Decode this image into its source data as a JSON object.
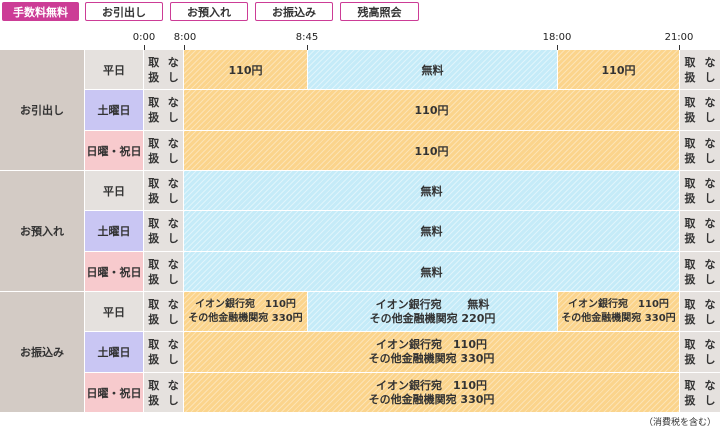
{
  "tabs": [
    {
      "label": "手数料無料",
      "active": true
    },
    {
      "label": "お引出し",
      "active": false
    },
    {
      "label": "お預入れ",
      "active": false
    },
    {
      "label": "お振込み",
      "active": false
    },
    {
      "label": "残高照会",
      "active": false
    }
  ],
  "timeline": {
    "ticks": [
      "0:00",
      "8:00",
      "8:45",
      "18:00",
      "21:00"
    ]
  },
  "not_available_line1": "取扱",
  "not_available_line2": "なし",
  "sections": [
    {
      "label": "お引出し",
      "rows": [
        {
          "day": "平日",
          "type": "weekday",
          "segments": [
            {
              "kind": "fee",
              "lines": [
                "110円"
              ]
            },
            {
              "kind": "free",
              "lines": [
                "無料"
              ]
            },
            {
              "kind": "fee",
              "lines": [
                "110円"
              ]
            }
          ]
        },
        {
          "day": "土曜日",
          "type": "saturday",
          "segments": [
            {
              "kind": "fee",
              "lines": [
                "110円"
              ]
            }
          ]
        },
        {
          "day": "日曜・祝日",
          "type": "holiday",
          "segments": [
            {
              "kind": "fee",
              "lines": [
                "110円"
              ]
            }
          ]
        }
      ]
    },
    {
      "label": "お預入れ",
      "rows": [
        {
          "day": "平日",
          "type": "weekday",
          "segments": [
            {
              "kind": "free",
              "lines": [
                "無料"
              ]
            }
          ]
        },
        {
          "day": "土曜日",
          "type": "saturday",
          "segments": [
            {
              "kind": "free",
              "lines": [
                "無料"
              ]
            }
          ]
        },
        {
          "day": "日曜・祝日",
          "type": "holiday",
          "segments": [
            {
              "kind": "free",
              "lines": [
                "無料"
              ]
            }
          ]
        }
      ]
    },
    {
      "label": "お振込み",
      "rows": [
        {
          "day": "平日",
          "type": "weekday",
          "segments": [
            {
              "kind": "fee",
              "lines": [
                "イオン銀行宛　110円",
                "その他金融機関宛 330円"
              ]
            },
            {
              "kind": "free",
              "lines": [
                "イオン銀行宛　　 無料",
                "その他金融機関宛 220円"
              ]
            },
            {
              "kind": "fee",
              "lines": [
                "イオン銀行宛　110円",
                "その他金融機関宛 330円"
              ]
            }
          ]
        },
        {
          "day": "土曜日",
          "type": "saturday",
          "segments": [
            {
              "kind": "fee",
              "lines": [
                "イオン銀行宛　110円",
                "その他金融機関宛 330円"
              ]
            }
          ]
        },
        {
          "day": "日曜・祝日",
          "type": "holiday",
          "segments": [
            {
              "kind": "fee",
              "lines": [
                "イオン銀行宛　110円",
                "その他金融機関宛 330円"
              ]
            }
          ]
        }
      ]
    }
  ],
  "footnote": "（消費税を含む）"
}
